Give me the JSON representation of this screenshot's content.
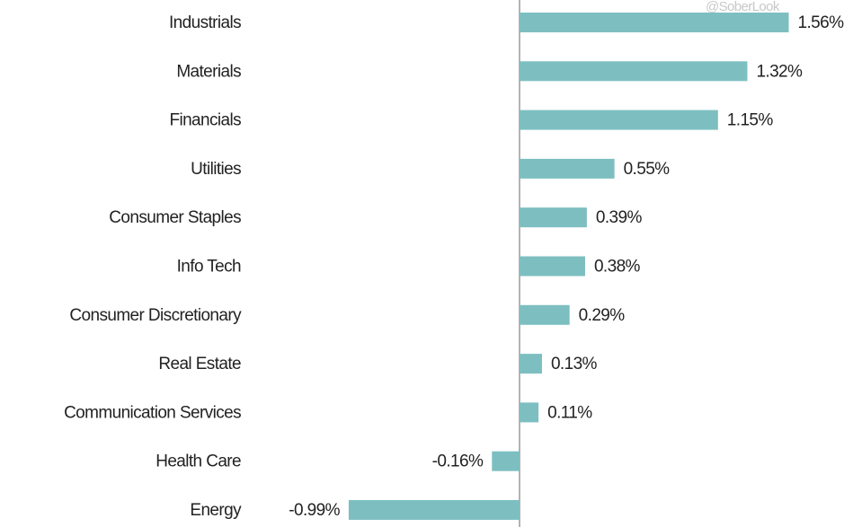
{
  "chart_data": {
    "type": "bar",
    "orientation": "horizontal",
    "watermark": "@SoberLook",
    "categories": [
      "Industrials",
      "Materials",
      "Financials",
      "Utilities",
      "Consumer Staples",
      "Info Tech",
      "Consumer Discretionary",
      "Real Estate",
      "Communication Services",
      "Health Care",
      "Energy"
    ],
    "values": [
      1.56,
      1.32,
      1.15,
      0.55,
      0.39,
      0.38,
      0.29,
      0.13,
      0.11,
      -0.16,
      -0.99
    ],
    "value_labels": [
      "1.56%",
      "1.32%",
      "1.15%",
      "0.55%",
      "0.39%",
      "0.38%",
      "0.29%",
      "0.13%",
      "0.11%",
      "-0.16%",
      "-0.99%"
    ],
    "color": "#7dbfc1"
  }
}
